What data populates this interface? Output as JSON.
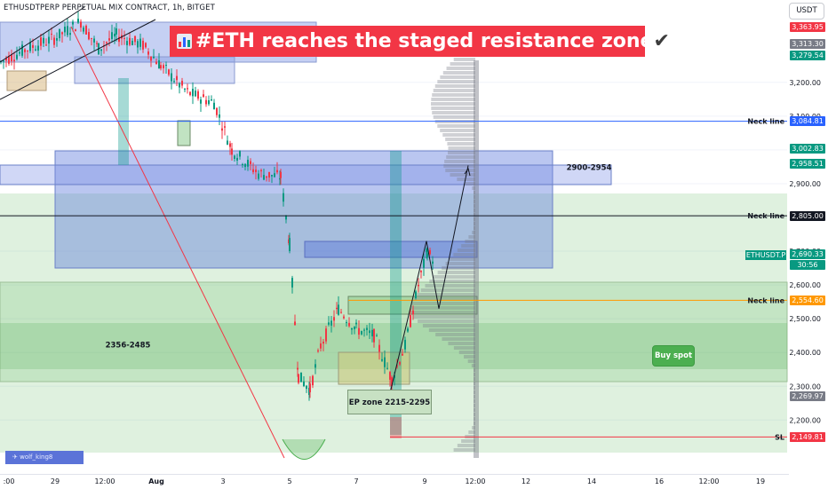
{
  "chart_data": {
    "type": "candlestick",
    "title": "ETHUSDTPERP PERPETUAL MIX CONTRACT, 1h, BITGET",
    "headline": "#ETH reaches the staged resistance zone",
    "unit": "USDT",
    "ylim": [
      2110,
      3430
    ],
    "y_axis_ticks": [
      {
        "value": 3200,
        "label": "3,200.00"
      },
      {
        "value": 3100,
        "label": "3,100.00"
      },
      {
        "value": 3000,
        "label": "3,000.00"
      },
      {
        "value": 2900,
        "label": "2,900.00"
      },
      {
        "value": 2800,
        "label": "2,800.00"
      },
      {
        "value": 2700,
        "label": "2,700.00"
      },
      {
        "value": 2600,
        "label": "2,600.00"
      },
      {
        "value": 2500,
        "label": "2,500.00"
      },
      {
        "value": 2400,
        "label": "2,400.00"
      },
      {
        "value": 2300,
        "label": "2,300.00"
      },
      {
        "value": 2200,
        "label": "2,200.00"
      }
    ],
    "x_axis_ticks": [
      ":00",
      "29",
      "12:00",
      "Aug",
      "3",
      "5",
      "7",
      "9",
      "12:00",
      "12",
      "14",
      "16",
      "12:00",
      "19"
    ],
    "price_labels": [
      {
        "value": 3363.95,
        "label": "3,363.95",
        "color": "#f23645"
      },
      {
        "value": 3313.3,
        "label": "3,313.30",
        "color": "#787b86"
      },
      {
        "value": 3279.54,
        "label": "3,279.54",
        "color": "#089981"
      },
      {
        "value": 3084.81,
        "label": "3,084.81",
        "color": "#2962ff"
      },
      {
        "value": 3002.83,
        "label": "3,002.83",
        "color": "#089981"
      },
      {
        "value": 2958.51,
        "label": "2,958.51",
        "color": "#089981"
      },
      {
        "value": 2805.0,
        "label": "2,805.00",
        "color": "#131722"
      },
      {
        "value": 2690.33,
        "label": "2,690.33",
        "color": "#089981"
      },
      {
        "value": 2554.6,
        "label": "2,554.60",
        "color": "#ff9800"
      },
      {
        "value": 2269.97,
        "label": "2,269.97",
        "color": "#787b86"
      },
      {
        "value": 2150.0,
        "label": "2,150.00",
        "color": "#f23645"
      },
      {
        "value": 2149.81,
        "label": "2,149.81",
        "color": "#f23645"
      }
    ],
    "current_price": {
      "ticker": "ETHUSDT.P",
      "value": 2690.33,
      "countdown": "30:56"
    },
    "levels": [
      {
        "label": "Neck line",
        "value": 3084.81,
        "color": "#2962ff"
      },
      {
        "label": "Neck line",
        "value": 2805.0,
        "color": "#131722"
      },
      {
        "label": "Neck line",
        "value": 2554.6,
        "color": "#ff9800"
      },
      {
        "label": "SL",
        "value": 2150.0,
        "color": "#f23645"
      }
    ],
    "zones": [
      {
        "label": "2900-2954",
        "low": 2900,
        "high": 2954
      },
      {
        "label": "2356-2485",
        "low": 2356,
        "high": 2485
      },
      {
        "label": "EP zone 2215-2295",
        "low": 2215,
        "high": 2295
      },
      {
        "label": "Buy spot",
        "low": 2330,
        "high": 2600
      }
    ],
    "path_points": [
      {
        "x": "Aug 8",
        "y": 2280
      },
      {
        "x": "Aug 9",
        "y": 2730
      },
      {
        "x": "Aug 9",
        "y": 2530
      },
      {
        "x": "Aug 10",
        "y": 2954
      }
    ],
    "watermark": "wolf_king8"
  }
}
